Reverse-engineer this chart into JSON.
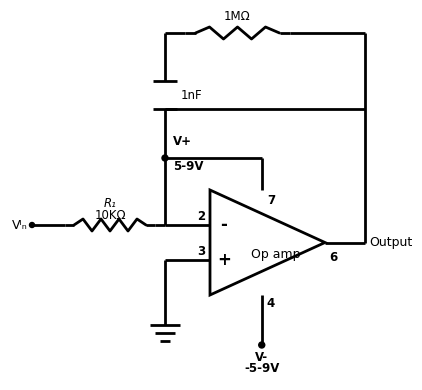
{
  "bg_color": "#ffffff",
  "line_color": "#000000",
  "line_width": 2.0,
  "fig_width": 3.96,
  "fig_height": 3.65,
  "labels": {
    "R1": "R₁",
    "R1_val": "10KΩ",
    "VIN": "Vᴵₙ",
    "R_feedback": "1MΩ",
    "C_feedback": "1nF",
    "V_plus": "V+",
    "V_plus_val": "5-9V",
    "V_minus": "V-",
    "V_minus_val": "-5-9V",
    "op_amp": "Op amp",
    "output": "Output",
    "pin2": "2",
    "pin3": "3",
    "pin4": "4",
    "pin6": "6",
    "pin7": "7",
    "minus": "-",
    "plus": "+"
  }
}
